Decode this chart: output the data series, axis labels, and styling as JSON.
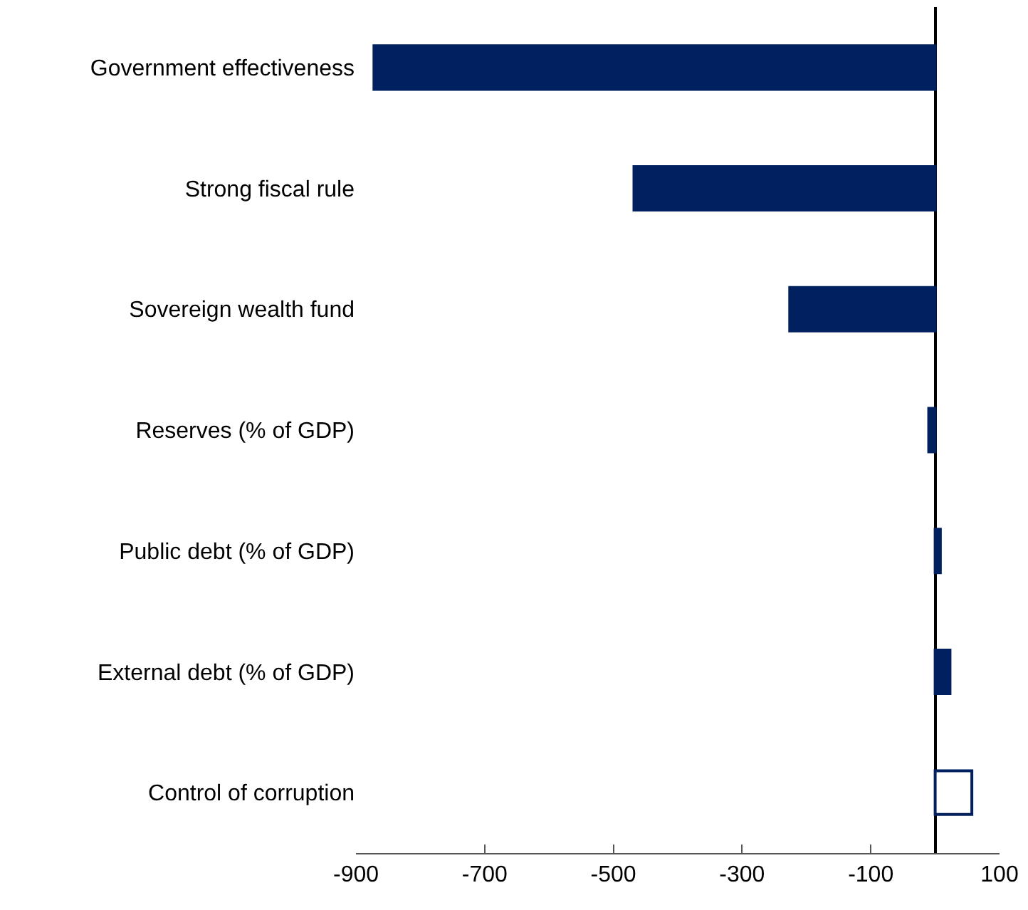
{
  "chart_data": {
    "type": "bar",
    "orientation": "horizontal",
    "categories": [
      "Government effectiveness",
      "Strong fiscal rule",
      "Sovereign wealth fund",
      "Reserves (% of GDP)",
      "Public debt (% of GDP)",
      "External debt (% of GDP)",
      "Control of corruption"
    ],
    "series": [
      {
        "color": "#002060",
        "values": [
          -872,
          -468,
          -226,
          -10,
          8,
          23,
          57
        ],
        "colors": [
          "#002060",
          "#002060",
          "#002060",
          "#002060",
          "#002060",
          "#002060",
          "#ffffff"
        ]
      }
    ],
    "xlim": [
      -900,
      100
    ],
    "xticks": [
      -900,
      -700,
      -500,
      -300,
      -100,
      100
    ]
  }
}
